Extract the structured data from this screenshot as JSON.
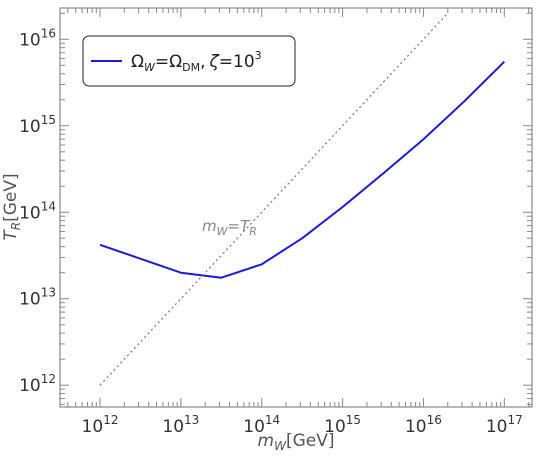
{
  "chart_data": {
    "type": "line",
    "scale": {
      "x": "log",
      "y": "log"
    },
    "xlim": [
      320000000000.0,
      2.2e+17
    ],
    "ylim": [
      560000000000.0,
      2.3e+16
    ],
    "xlabel": {
      "var": "m",
      "sub": "W",
      "unit": "[GeV]"
    },
    "ylabel": {
      "var": "T",
      "sub": "R",
      "unit": "[GeV]"
    },
    "x_ticks": [
      {
        "base": "10",
        "exp": "12",
        "value": 1000000000000.0
      },
      {
        "base": "10",
        "exp": "13",
        "value": 10000000000000.0
      },
      {
        "base": "10",
        "exp": "14",
        "value": 100000000000000.0
      },
      {
        "base": "10",
        "exp": "15",
        "value": 1000000000000000.0
      },
      {
        "base": "10",
        "exp": "16",
        "value": 1e+16
      },
      {
        "base": "10",
        "exp": "17",
        "value": 1e+17
      }
    ],
    "y_ticks": [
      {
        "base": "10",
        "exp": "12",
        "value": 1000000000000.0
      },
      {
        "base": "10",
        "exp": "13",
        "value": 10000000000000.0
      },
      {
        "base": "10",
        "exp": "14",
        "value": 100000000000000.0
      },
      {
        "base": "10",
        "exp": "15",
        "value": 1000000000000000.0
      },
      {
        "base": "10",
        "exp": "16",
        "value": 1e+16
      }
    ],
    "series": [
      {
        "name": "Ω_W=Ω_DM, ζ=10^3",
        "color": "#1a1adb",
        "style": "solid",
        "x": [
          1000000000000.0,
          10000000000000.0,
          31600000000000.0,
          100000000000000.0,
          316000000000000.0,
          1000000000000000.0,
          3160000000000000.0,
          1e+16,
          3.16e+16,
          1e+17
        ],
        "y": [
          42000000000000.0,
          20000000000000.0,
          17500000000000.0,
          25000000000000.0,
          50000000000000.0,
          115000000000000.0,
          280000000000000.0,
          700000000000000.0,
          1900000000000000.0,
          5500000000000000.0
        ]
      },
      {
        "name": "",
        "color": "#777777",
        "style": "dotted",
        "x": [
          1000000000000.0,
          2e+16
        ],
        "y": [
          1000000000000.0,
          2e+16
        ]
      }
    ],
    "legend": {
      "position": "top-left",
      "entry": {
        "omega": "Ω",
        "sub_w": "W",
        "eq": "=",
        "sub_dm": "DM",
        "comma": ",",
        "zeta": "ζ",
        "eq2": "=10",
        "exp": "3"
      }
    },
    "annotation": {
      "m": "m",
      "sub_w": "W",
      "eq": "=",
      "t": "T",
      "sub_r": "R"
    },
    "grid": false
  }
}
